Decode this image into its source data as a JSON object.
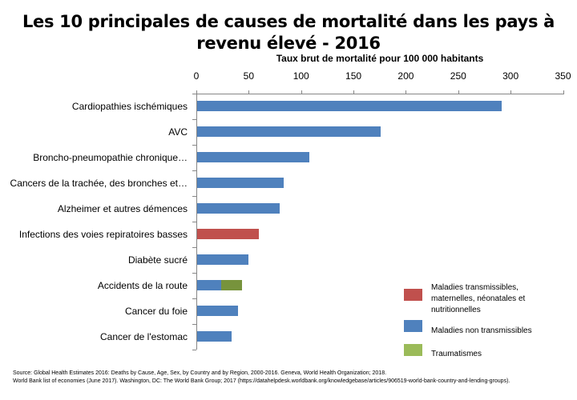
{
  "title": {
    "line1": "Les 10 principales de causes de mortalité dans les pays à",
    "line2": "revenu élevé - 2016"
  },
  "axis": {
    "title": "Taux brut de mortalité pour 100 000 habitants",
    "ticks": [
      "0",
      "50",
      "100",
      "150",
      "200",
      "250",
      "300",
      "350"
    ]
  },
  "categories": [
    "Cardiopathies ischémiques",
    "AVC",
    "Broncho-pneumopathie chronique…",
    "Cancers de la trachée, des bronches et…",
    "Alzheimer et autres démences",
    "Infections des voies repiratoires basses",
    "Diabète sucré",
    "Accidents de la route",
    "Cancer du foie",
    "Cancer de l'estomac"
  ],
  "legend": [
    {
      "label": "Maladies transmissibles, maternelles, néonatales et nutritionnelles",
      "lines": [
        "Maladies transmissibles,",
        "maternelles, néonatales et",
        "nutritionnelles"
      ],
      "color": "#C0504D"
    },
    {
      "label": "Maladies non transmissibles",
      "lines": [
        "Maladies non transmissibles"
      ],
      "color": "#4F81BD"
    },
    {
      "label": "Traumatismes",
      "lines": [
        "Traumatismes"
      ],
      "color": "#9BBB59"
    }
  ],
  "source": {
    "line1": "Source: Global Health Estimates 2016: Deaths by Cause, Age, Sex, by Country and by Region, 2000-2016. Geneva, World Health Organization; 2018.",
    "line2": "World Bank list of economies (June 2017). Washington, DC: The World Bank Group; 2017 (https://datahelpdesk.worldbank.org/knowledgebase/articles/906519-world-bank-country-and-lending-groups)."
  },
  "colors": {
    "communicable": "#C0504D",
    "noncommunicable": "#4F81BD",
    "injuries": "#77933C",
    "injuries_legend": "#9BBB59",
    "axis": "#868686"
  },
  "chart_data": {
    "type": "bar",
    "orientation": "horizontal",
    "stacked": true,
    "title": "Les 10 principales de causes de mortalité dans les pays à revenu élevé - 2016",
    "xlabel": "Taux brut de mortalité pour 100 000 habitants",
    "ylabel": "",
    "xlim": [
      0,
      350
    ],
    "x_ticks": [
      0,
      50,
      100,
      150,
      200,
      250,
      300,
      350
    ],
    "x_axis_position": "top",
    "grid": false,
    "legend_position": "bottom-right",
    "categories": [
      "Cardiopathies ischémiques",
      "AVC",
      "Broncho-pneumopathie chronique…",
      "Cancers de la trachée, des bronches et…",
      "Alzheimer et autres démences",
      "Infections des voies repiratoires basses",
      "Diabète sucré",
      "Accidents de la route",
      "Cancer du foie",
      "Cancer de l'estomac"
    ],
    "series": [
      {
        "name": "Maladies transmissibles, maternelles, néonatales et nutritionnelles",
        "color": "#C0504D",
        "values": [
          0,
          0,
          0,
          0,
          0,
          59,
          0,
          0,
          0,
          0
        ]
      },
      {
        "name": "Maladies non transmissibles",
        "color": "#4F81BD",
        "values": [
          291,
          175,
          107,
          83,
          79,
          0,
          49,
          23,
          39,
          33
        ]
      },
      {
        "name": "Traumatismes",
        "color": "#9BBB59",
        "values": [
          0,
          0,
          0,
          0,
          0,
          0,
          0,
          20,
          0,
          0
        ]
      }
    ]
  }
}
